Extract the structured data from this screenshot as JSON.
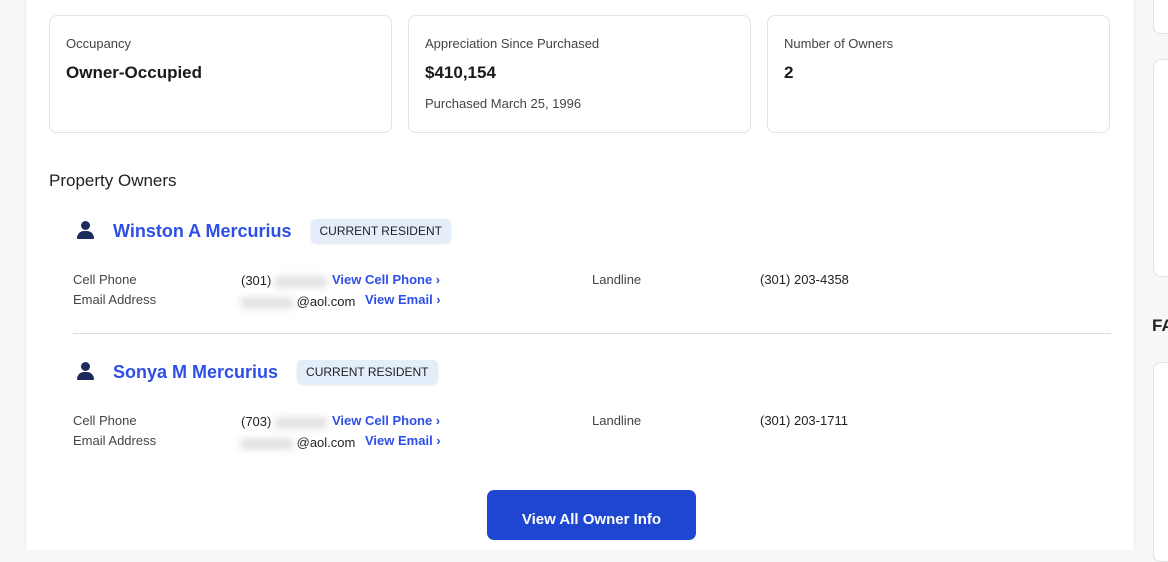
{
  "cards": [
    {
      "label": "Occupancy",
      "value": "Owner-Occupied"
    },
    {
      "label": "Appreciation Since Purchased",
      "value": "$410,154",
      "sub": "Purchased March 25, 1996"
    },
    {
      "label": "Number of Owners",
      "value": "2"
    }
  ],
  "section_title": "Property Owners",
  "owners": [
    {
      "name": "Winston A Mercurius",
      "badge": "CURRENT RESIDENT",
      "cell_label": "Cell Phone",
      "cell_prefix": "(301)",
      "view_cell": "View Cell Phone",
      "email_label": "Email Address",
      "email_domain": "@aol.com",
      "view_email": "View Email",
      "landline_label": "Landline",
      "landline": "(301) 203-4358"
    },
    {
      "name": "Sonya M Mercurius",
      "badge": "CURRENT RESIDENT",
      "cell_label": "Cell Phone",
      "cell_prefix": "(703)",
      "view_cell": "View Cell Phone",
      "email_label": "Email Address",
      "email_domain": "@aol.com",
      "view_email": "View Email",
      "landline_label": "Landline",
      "landline": "(301) 203-1711"
    }
  ],
  "view_all_button": "View All Owner Info",
  "right_heading_partial": "FA",
  "accent_color": "#2d4fe6"
}
